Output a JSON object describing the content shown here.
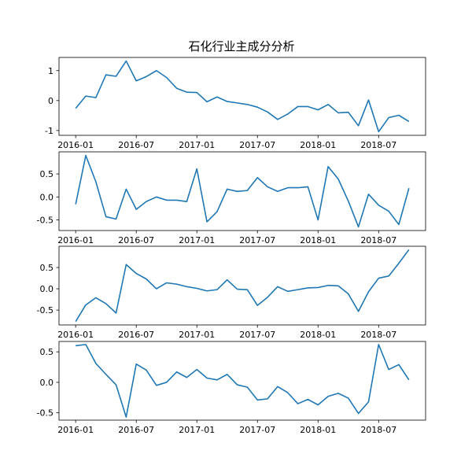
{
  "title": "石化行业主成分分析",
  "chart_data": [
    {
      "type": "line",
      "title": "石化行业主成分分析",
      "color": "#1f77b4",
      "x": [
        "2016-01",
        "2016-02",
        "2016-03",
        "2016-04",
        "2016-05",
        "2016-06",
        "2016-07",
        "2016-08",
        "2016-09",
        "2016-10",
        "2016-11",
        "2016-12",
        "2017-01",
        "2017-02",
        "2017-03",
        "2017-04",
        "2017-05",
        "2017-06",
        "2017-07",
        "2017-08",
        "2017-09",
        "2017-10",
        "2017-11",
        "2017-12",
        "2018-01",
        "2018-02",
        "2018-03",
        "2018-04",
        "2018-05",
        "2018-06",
        "2018-07",
        "2018-08",
        "2018-09",
        "2018-10"
      ],
      "values": [
        -0.26,
        0.15,
        0.1,
        0.86,
        0.81,
        1.32,
        0.66,
        0.8,
        1.0,
        0.77,
        0.41,
        0.28,
        0.27,
        -0.04,
        0.12,
        -0.03,
        -0.08,
        -0.13,
        -0.22,
        -0.38,
        -0.63,
        -0.45,
        -0.2,
        -0.2,
        -0.31,
        -0.13,
        -0.41,
        -0.39,
        -0.84,
        0.02,
        -1.04,
        -0.57,
        -0.49,
        -0.7
      ],
      "xtick_labels": [
        "2016-01",
        "2016-07",
        "2017-01",
        "2017-07",
        "2018-01",
        "2018-07"
      ],
      "yticks": [
        -1,
        0,
        1
      ],
      "ylim": [
        -1.16,
        1.44
      ],
      "grid": false
    },
    {
      "type": "line",
      "color": "#1f77b4",
      "x": [
        "2016-01",
        "2016-02",
        "2016-03",
        "2016-04",
        "2016-05",
        "2016-06",
        "2016-07",
        "2016-08",
        "2016-09",
        "2016-10",
        "2016-11",
        "2016-12",
        "2017-01",
        "2017-02",
        "2017-03",
        "2017-04",
        "2017-05",
        "2017-06",
        "2017-07",
        "2017-08",
        "2017-09",
        "2017-10",
        "2017-11",
        "2017-12",
        "2018-01",
        "2018-02",
        "2018-03",
        "2018-04",
        "2018-05",
        "2018-06",
        "2018-07",
        "2018-08",
        "2018-09",
        "2018-10"
      ],
      "values": [
        -0.16,
        0.9,
        0.33,
        -0.43,
        -0.48,
        0.17,
        -0.27,
        -0.1,
        0.0,
        -0.07,
        -0.07,
        -0.1,
        0.61,
        -0.54,
        -0.32,
        0.17,
        0.12,
        0.14,
        0.42,
        0.22,
        0.12,
        0.2,
        0.2,
        0.22,
        -0.5,
        0.66,
        0.39,
        -0.09,
        -0.65,
        0.06,
        -0.18,
        -0.31,
        -0.6,
        0.19
      ],
      "xtick_labels": [
        "2016-01",
        "2016-07",
        "2017-01",
        "2017-07",
        "2018-01",
        "2018-07"
      ],
      "yticks": [
        -0.5,
        0.0,
        0.5
      ],
      "ylim": [
        -0.73,
        0.98
      ],
      "grid": false
    },
    {
      "type": "line",
      "color": "#1f77b4",
      "x": [
        "2016-01",
        "2016-02",
        "2016-03",
        "2016-04",
        "2016-05",
        "2016-06",
        "2016-07",
        "2016-08",
        "2016-09",
        "2016-10",
        "2016-11",
        "2016-12",
        "2017-01",
        "2017-02",
        "2017-03",
        "2017-04",
        "2017-05",
        "2017-06",
        "2017-07",
        "2017-08",
        "2017-09",
        "2017-10",
        "2017-11",
        "2017-12",
        "2018-01",
        "2018-02",
        "2018-03",
        "2018-04",
        "2018-05",
        "2018-06",
        "2018-07",
        "2018-08",
        "2018-09",
        "2018-10"
      ],
      "values": [
        -0.77,
        -0.38,
        -0.21,
        -0.35,
        -0.57,
        0.57,
        0.36,
        0.23,
        0.0,
        0.14,
        0.11,
        0.05,
        0.01,
        -0.05,
        -0.02,
        0.21,
        -0.01,
        -0.02,
        -0.39,
        -0.2,
        0.05,
        -0.06,
        -0.02,
        0.02,
        0.03,
        0.08,
        0.07,
        -0.12,
        -0.53,
        -0.07,
        0.25,
        0.3,
        0.6,
        0.92
      ],
      "xtick_labels": [
        "2016-01",
        "2016-07",
        "2017-01",
        "2017-07",
        "2018-01",
        "2018-07"
      ],
      "yticks": [
        -0.5,
        0.0,
        0.5
      ],
      "ylim": [
        -0.85,
        1.0
      ],
      "grid": false
    },
    {
      "type": "line",
      "color": "#1f77b4",
      "x": [
        "2016-01",
        "2016-02",
        "2016-03",
        "2016-04",
        "2016-05",
        "2016-06",
        "2016-07",
        "2016-08",
        "2016-09",
        "2016-10",
        "2016-11",
        "2016-12",
        "2017-01",
        "2017-02",
        "2017-03",
        "2017-04",
        "2017-05",
        "2017-06",
        "2017-07",
        "2017-08",
        "2017-09",
        "2017-10",
        "2017-11",
        "2017-12",
        "2018-01",
        "2018-02",
        "2018-03",
        "2018-04",
        "2018-05",
        "2018-06",
        "2018-07",
        "2018-08",
        "2018-09",
        "2018-10"
      ],
      "values": [
        0.6,
        0.62,
        0.31,
        0.13,
        -0.04,
        -0.57,
        0.3,
        0.2,
        -0.05,
        0.0,
        0.17,
        0.08,
        0.21,
        0.07,
        0.04,
        0.13,
        -0.04,
        -0.08,
        -0.29,
        -0.27,
        -0.07,
        -0.17,
        -0.35,
        -0.28,
        -0.37,
        -0.23,
        -0.18,
        -0.26,
        -0.51,
        -0.32,
        0.62,
        0.21,
        0.29,
        0.04
      ],
      "xtick_labels": [
        "2016-01",
        "2016-07",
        "2017-01",
        "2017-07",
        "2018-01",
        "2018-07"
      ],
      "yticks": [
        -0.5,
        0.0,
        0.5
      ],
      "ylim": [
        -0.62,
        0.67
      ],
      "grid": false
    }
  ]
}
